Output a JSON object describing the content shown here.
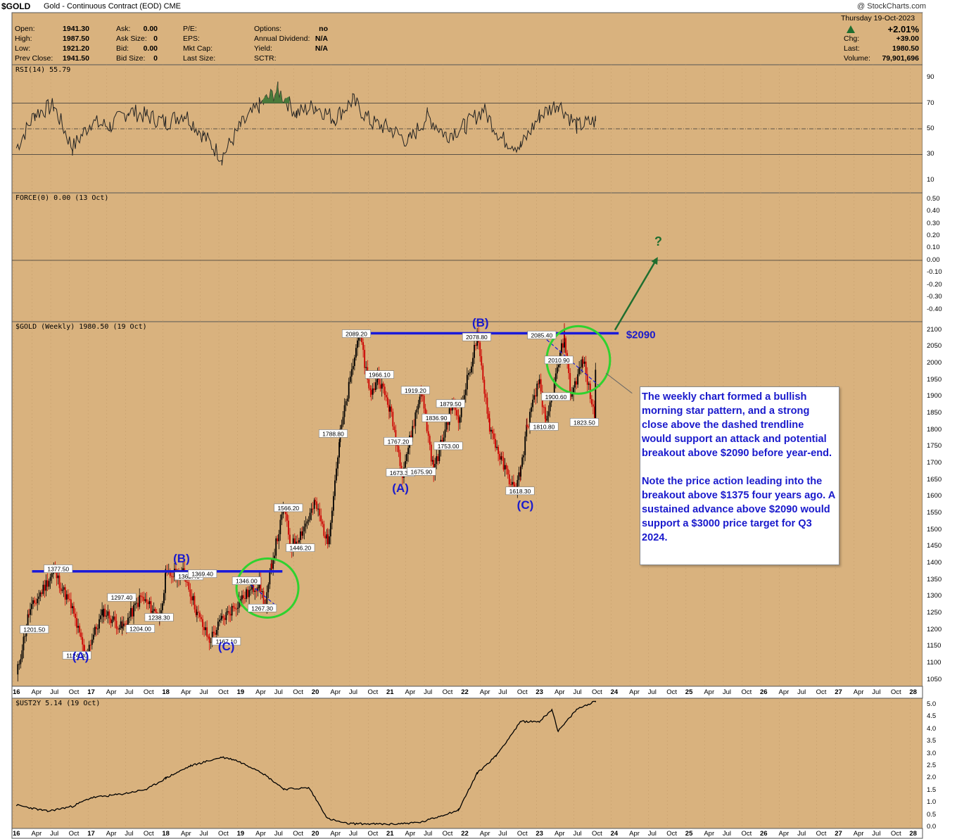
{
  "header": {
    "symbol": "$GOLD",
    "description": "Gold - Continuous Contract (EOD) CME",
    "brand": "@ StockCharts.com"
  },
  "quote_left": [
    {
      "label": "Open:",
      "value": "1941.30"
    },
    {
      "label": "High:",
      "value": "1987.50"
    },
    {
      "label": "Low:",
      "value": "1921.20"
    },
    {
      "label": "Prev Close:",
      "value": "1941.50"
    }
  ],
  "quote_mid": [
    {
      "label": "Ask:",
      "value": "0.00"
    },
    {
      "label": "Ask Size:",
      "value": "0"
    },
    {
      "label": "Bid:",
      "value": "0.00"
    },
    {
      "label": "Bid Size:",
      "value": "0"
    }
  ],
  "quote_right": [
    {
      "label": "P/E:",
      "value": ""
    },
    {
      "label": "EPS:",
      "value": ""
    },
    {
      "label": "Mkt Cap:",
      "value": ""
    },
    {
      "label": "Last Size:",
      "value": ""
    }
  ],
  "quote_far": [
    {
      "label": "Options:",
      "value": "no"
    },
    {
      "label": "Annual Dividend:",
      "value": "N/A"
    },
    {
      "label": "Yield:",
      "value": "N/A"
    },
    {
      "label": "SCTR:",
      "value": ""
    }
  ],
  "summary": {
    "date": "Thursday  19-Oct-2023",
    "pct_change": "+2.01%",
    "chg_label": "Chg:",
    "chg": "+39.00",
    "last_label": "Last:",
    "last": "1980.50",
    "volume_label": "Volume:",
    "volume": "79,901,696"
  },
  "panels": {
    "rsi_title": "RSI(14) 55.79",
    "force_title": "FORCE(0) 0.00 (13 Oct)",
    "gold_title": "$GOLD (Weekly) 1980.50 (19 Oct)",
    "ust_title": "$UST2Y 5.14 (19 Oct)"
  },
  "colors": {
    "panel_bg": "#d9b27e",
    "wave_blue": "#1a1acc",
    "resistance_blue": "#1a1ad9",
    "circle_green": "#2fd22f",
    "arrow_green": "#1f6e2f",
    "candle_up": "#000000",
    "candle_down": "#cc0000"
  },
  "annotation": {
    "paragraph1": "The weekly chart formed a bullish morning star pattern, and a strong close above the dashed trendline would support an attack and potential breakout above $2090 before year-end.",
    "paragraph2": "Note the price action leading into the breakout above $1375 four years ago. A sustained advance above $2090 would support a $3000 price target for Q3 2024.",
    "resistance_label": "$2090",
    "question_mark": "?"
  },
  "chart_data": [
    {
      "type": "line",
      "title": "RSI(14) 55.79",
      "yticks": [
        10,
        30,
        50,
        70,
        90
      ],
      "ylim": [
        0,
        100
      ],
      "reference_lines": [
        30,
        50,
        70
      ],
      "x": [
        "2016-01",
        "2016-04",
        "2016-07",
        "2016-10",
        "2017-01",
        "2017-04",
        "2017-07",
        "2017-10",
        "2018-01",
        "2018-04",
        "2018-07",
        "2018-10",
        "2019-01",
        "2019-04",
        "2019-07",
        "2019-10",
        "2020-01",
        "2020-04",
        "2020-07",
        "2020-10",
        "2021-01",
        "2021-04",
        "2021-07",
        "2021-10",
        "2022-01",
        "2022-04",
        "2022-07",
        "2022-10",
        "2023-01",
        "2023-04",
        "2023-07",
        "2023-10"
      ],
      "values": [
        35,
        62,
        68,
        35,
        55,
        52,
        64,
        60,
        55,
        62,
        45,
        28,
        52,
        68,
        80,
        62,
        68,
        58,
        72,
        55,
        50,
        40,
        60,
        45,
        52,
        65,
        42,
        36,
        60,
        70,
        52,
        56
      ]
    },
    {
      "type": "line",
      "title": "FORCE(0) 0.00 (13 Oct)",
      "yticks": [
        0.5,
        0.4,
        0.3,
        0.2,
        0.1,
        0.0,
        -0.1,
        -0.2,
        -0.3,
        -0.4
      ],
      "ylim": [
        -0.5,
        0.55
      ],
      "values": [
        0.0
      ]
    },
    {
      "type": "line",
      "title": "$GOLD (Weekly) 1980.50 (19 Oct)",
      "yticks": [
        1050,
        1100,
        1150,
        1200,
        1250,
        1300,
        1350,
        1400,
        1450,
        1500,
        1550,
        1600,
        1650,
        1700,
        1750,
        1800,
        1850,
        1900,
        1950,
        2000,
        2050,
        2100
      ],
      "ylim": [
        1030,
        2125
      ],
      "x": [
        "2016-01",
        "2016-03",
        "2016-07",
        "2016-10",
        "2016-12",
        "2017-03",
        "2017-06",
        "2017-09",
        "2017-12",
        "2018-01",
        "2018-04",
        "2018-06",
        "2018-08",
        "2018-10",
        "2019-01",
        "2019-04",
        "2019-05",
        "2019-06",
        "2019-08",
        "2019-09",
        "2019-11",
        "2020-01",
        "2020-03",
        "2020-05",
        "2020-08",
        "2020-10",
        "2020-11",
        "2021-01",
        "2021-03",
        "2021-06",
        "2021-08",
        "2021-11",
        "2021-12",
        "2022-03",
        "2022-05",
        "2022-07",
        "2022-09",
        "2022-10",
        "2022-11",
        "2023-01",
        "2023-02",
        "2023-05",
        "2023-06",
        "2023-08",
        "2023-10",
        "2023-10"
      ],
      "values": [
        1060,
        1250,
        1377.5,
        1260,
        1124.3,
        1255,
        1204,
        1297.4,
        1238.3,
        1362.4,
        1369.4,
        1250,
        1167.1,
        1230,
        1290,
        1340,
        1267.3,
        1400,
        1566.2,
        1446.2,
        1500,
        1580,
        1460,
        1788.8,
        2089.2,
        1900,
        1966.1,
        1860,
        1673.3,
        1919.2,
        1675.9,
        1879.5,
        1836.9,
        2078.8,
        1810,
        1700,
        1618.3,
        1680,
        1810.8,
        1950,
        1810,
        2085.4,
        1900.6,
        2010.9,
        1823.5,
        1980.5
      ],
      "price_labels": [
        "1377.50",
        "1201.50",
        "1124.30",
        "1297.40",
        "1204.00",
        "1238.30",
        "1362.40",
        "1369.40",
        "1167.10",
        "1346.00",
        "1267.30",
        "1566.20",
        "1446.20",
        "1788.80",
        "2089.20",
        "1966.10",
        "1767.20",
        "1673.30",
        "1919.20",
        "1836.90",
        "1879.50",
        "1675.90",
        "1753.00",
        "2078.80",
        "1618.30",
        "2085.40",
        "2010.90",
        "1900.60",
        "1810.80",
        "1823.50"
      ],
      "wave_labels": [
        "(A)",
        "(B)",
        "(C)",
        "(A)",
        "(B)",
        "(C)"
      ],
      "resistance_levels": [
        1375,
        2090
      ],
      "target_label": "$2090"
    },
    {
      "type": "line",
      "title": "$UST2Y 5.14 (19 Oct)",
      "yticks": [
        0.0,
        0.5,
        1.0,
        1.5,
        2.0,
        2.5,
        3.0,
        3.5,
        4.0,
        4.5,
        5.0
      ],
      "ylim": [
        -0.05,
        5.25
      ],
      "x": [
        "2016-01",
        "2016-06",
        "2016-10",
        "2017-01",
        "2017-06",
        "2017-10",
        "2018-01",
        "2018-05",
        "2018-10",
        "2018-12",
        "2019-04",
        "2019-08",
        "2019-12",
        "2020-03",
        "2020-06",
        "2021-01",
        "2021-06",
        "2021-12",
        "2022-03",
        "2022-06",
        "2022-10",
        "2023-01",
        "2023-03",
        "2023-04",
        "2023-07",
        "2023-10"
      ],
      "values": [
        0.9,
        0.65,
        0.85,
        1.2,
        1.35,
        1.55,
        2.0,
        2.5,
        2.85,
        2.75,
        2.3,
        1.55,
        1.6,
        0.35,
        0.15,
        0.12,
        0.2,
        0.7,
        2.2,
        2.9,
        4.3,
        4.3,
        4.8,
        3.9,
        4.8,
        5.14
      ]
    }
  ],
  "xaxis": {
    "labels": [
      "16",
      "Apr",
      "Jul",
      "Oct",
      "17",
      "Apr",
      "Jul",
      "Oct",
      "18",
      "Apr",
      "Jul",
      "Oct",
      "19",
      "Apr",
      "Jul",
      "Oct",
      "20",
      "Apr",
      "Jul",
      "Oct",
      "21",
      "Apr",
      "Jul",
      "Oct",
      "22",
      "Apr",
      "Jul",
      "Oct",
      "23",
      "Apr",
      "Jul",
      "Oct",
      "24",
      "Apr",
      "Jul",
      "Oct",
      "25",
      "Apr",
      "Jul",
      "Oct",
      "26",
      "Apr",
      "Jul",
      "Oct",
      "27",
      "Apr",
      "Jul",
      "Oct",
      "28"
    ]
  }
}
